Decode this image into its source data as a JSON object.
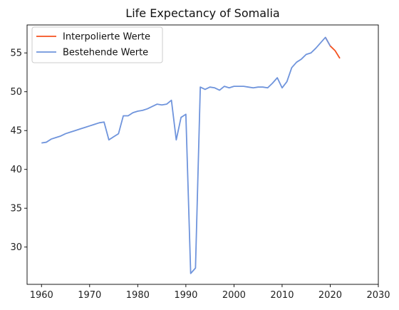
{
  "chart_data": {
    "type": "line",
    "title": "Life Expectancy of Somalia",
    "xlabel": "",
    "ylabel": "",
    "xlim": [
      1957,
      2030
    ],
    "ylim": [
      25.2,
      58.6
    ],
    "x_ticks": [
      1960,
      1970,
      1980,
      1990,
      2000,
      2010,
      2020,
      2030
    ],
    "y_ticks": [
      30,
      35,
      40,
      45,
      50,
      55
    ],
    "grid": false,
    "legend": "top-left",
    "series": [
      {
        "name": "Interpolierte Werte",
        "color": "#f4511e",
        "x": [
          2019,
          2020,
          2021,
          2022
        ],
        "y": [
          57.0,
          55.9,
          55.3,
          54.3
        ]
      },
      {
        "name": "Bestehende Werte",
        "color": "#6f94dc",
        "x": [
          1960,
          1961,
          1962,
          1963,
          1964,
          1965,
          1966,
          1967,
          1968,
          1969,
          1970,
          1971,
          1972,
          1973,
          1974,
          1975,
          1976,
          1977,
          1978,
          1979,
          1980,
          1981,
          1982,
          1983,
          1984,
          1985,
          1986,
          1987,
          1988,
          1989,
          1990,
          1991,
          1992,
          1993,
          1994,
          1995,
          1996,
          1997,
          1998,
          1999,
          2000,
          2001,
          2002,
          2003,
          2004,
          2005,
          2006,
          2007,
          2008,
          2009,
          2010,
          2011,
          2012,
          2013,
          2014,
          2015,
          2016,
          2017,
          2018,
          2019,
          2020
        ],
        "y": [
          43.4,
          43.5,
          43.9,
          44.1,
          44.3,
          44.6,
          44.8,
          45.0,
          45.2,
          45.4,
          45.6,
          45.8,
          46.0,
          46.1,
          43.8,
          44.2,
          44.6,
          46.9,
          46.9,
          47.3,
          47.5,
          47.6,
          47.8,
          48.1,
          48.4,
          48.3,
          48.4,
          48.9,
          43.8,
          46.7,
          47.1,
          26.6,
          27.3,
          50.6,
          50.3,
          50.6,
          50.5,
          50.2,
          50.7,
          50.5,
          50.7,
          50.7,
          50.7,
          50.6,
          50.5,
          50.6,
          50.6,
          50.5,
          51.1,
          51.8,
          50.5,
          51.3,
          53.1,
          53.8,
          54.2,
          54.8,
          55.0,
          55.6,
          56.3,
          57.0,
          55.9
        ]
      }
    ]
  }
}
